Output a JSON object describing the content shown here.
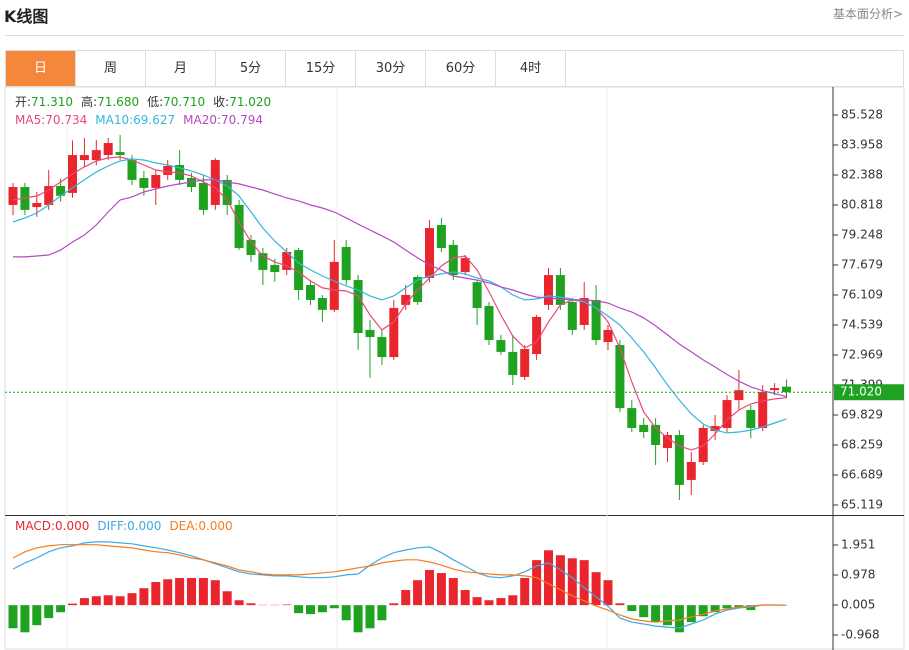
{
  "header": {
    "title": "K线图",
    "link": "基本面分析>"
  },
  "tabs": [
    {
      "label": "日",
      "active": true
    },
    {
      "label": "周",
      "active": false
    },
    {
      "label": "月",
      "active": false
    },
    {
      "label": "5分",
      "active": false
    },
    {
      "label": "15分",
      "active": false
    },
    {
      "label": "30分",
      "active": false
    },
    {
      "label": "60分",
      "active": false
    },
    {
      "label": "4时",
      "active": false
    }
  ],
  "chart_data": [
    {
      "type": "candlestick",
      "info": [
        {
          "name": "开:",
          "value": 71.31,
          "label": "71.310",
          "color": "#1fa21f"
        },
        {
          "name": "高:",
          "value": 71.68,
          "label": "71.680",
          "color": "#1fa21f"
        },
        {
          "name": "低:",
          "value": 70.71,
          "label": "70.710",
          "color": "#1fa21f"
        },
        {
          "name": "收:",
          "value": 71.02,
          "label": "71.020",
          "color": "#1fa21f"
        }
      ],
      "up_color": "#e9262d",
      "down_color": "#1fa21f",
      "open": [
        80.82,
        81.76,
        80.71,
        80.82,
        81.81,
        81.45,
        83.17,
        83.17,
        83.43,
        83.59,
        83.17,
        82.23,
        81.71,
        82.39,
        82.91,
        82.23,
        81.97,
        80.82,
        82.13,
        80.82,
        78.99,
        78.3,
        77.68,
        77.42,
        78.46,
        76.63,
        75.95,
        75.33,
        78.62,
        76.89,
        74.28,
        73.91,
        72.86,
        75.59,
        77.05,
        77.0,
        79.77,
        78.73,
        77.31,
        76.78,
        75.53,
        73.75,
        73.13,
        71.82,
        73.02,
        75.59,
        77.15,
        75.74,
        74.54,
        75.85,
        73.65,
        73.49,
        70.19,
        69.31,
        69.31,
        68.1,
        68.78,
        66.43,
        67.37,
        68.99,
        69.15,
        70.61,
        70.09,
        69.15,
        71.13,
        71.31
      ],
      "high": [
        81.97,
        81.97,
        81.5,
        82.65,
        82.2,
        84.2,
        84.33,
        84.22,
        84.33,
        84.48,
        83.43,
        82.6,
        82.65,
        83.17,
        83.69,
        82.5,
        82.39,
        83.27,
        82.39,
        81.08,
        79.25,
        78.57,
        78.0,
        78.57,
        78.57,
        76.89,
        76.1,
        78.99,
        78.99,
        77.15,
        74.8,
        74.28,
        75.85,
        76.63,
        77.15,
        80.03,
        80.14,
        78.99,
        78.2,
        76.89,
        75.74,
        74.02,
        74.02,
        73.49,
        75.07,
        77.52,
        77.52,
        75.95,
        76.78,
        76.63,
        74.54,
        73.75,
        70.61,
        69.67,
        69.67,
        68.94,
        69.04,
        67.89,
        69.31,
        69.83,
        70.87,
        72.18,
        70.35,
        71.4,
        71.5,
        71.68
      ],
      "low": [
        80.29,
        80.29,
        80.2,
        80.56,
        81.0,
        81.2,
        82.8,
        82.9,
        83.17,
        83.17,
        81.86,
        81.3,
        80.82,
        82.13,
        81.86,
        81.5,
        80.29,
        80.56,
        80.29,
        78.46,
        77.84,
        76.63,
        76.8,
        77.15,
        75.85,
        75.59,
        74.7,
        75.22,
        76.63,
        73.23,
        71.77,
        72.45,
        72.71,
        75.33,
        75.59,
        76.78,
        78.36,
        76.89,
        77.15,
        74.54,
        73.49,
        72.97,
        71.4,
        71.66,
        72.71,
        75.33,
        75.33,
        74.02,
        74.28,
        73.49,
        73.23,
        69.98,
        68.94,
        68.62,
        67.21,
        67.37,
        65.38,
        65.64,
        67.21,
        68.52,
        68.94,
        70.09,
        68.62,
        68.99,
        70.87,
        70.71
      ],
      "close": [
        81.76,
        80.56,
        80.92,
        81.81,
        81.3,
        83.43,
        83.43,
        83.69,
        84.06,
        83.43,
        82.13,
        81.71,
        82.39,
        82.86,
        82.13,
        81.76,
        80.56,
        83.17,
        80.82,
        78.57,
        78.2,
        77.42,
        77.31,
        78.36,
        76.37,
        75.85,
        75.33,
        77.84,
        76.89,
        74.12,
        73.91,
        72.86,
        75.43,
        76.11,
        75.74,
        79.61,
        78.57,
        77.15,
        78.04,
        75.43,
        73.75,
        73.13,
        71.92,
        73.28,
        74.96,
        77.15,
        75.59,
        74.28,
        75.95,
        73.75,
        74.28,
        70.19,
        69.15,
        68.94,
        68.26,
        68.78,
        66.17,
        67.37,
        69.15,
        69.25,
        70.61,
        71.13,
        69.15,
        71.03,
        71.24,
        71.02
      ],
      "series": [
        {
          "name": "MA5:",
          "color": "#e84a7a",
          "values": [
            81.08,
            81.19,
            81.29,
            81.6,
            82.02,
            82.44,
            82.81,
            83.12,
            83.28,
            83.33,
            83.17,
            82.91,
            82.65,
            82.55,
            82.49,
            82.34,
            82.02,
            81.71,
            81.08,
            79.93,
            78.88,
            78.15,
            77.84,
            77.63,
            77.31,
            76.84,
            76.48,
            76.37,
            76.32,
            76.06,
            75.06,
            74.28,
            74.7,
            75.64,
            76.37,
            77.0,
            77.63,
            78.05,
            78.15,
            77.42,
            76.27,
            75.06,
            73.96,
            73.34,
            73.65,
            74.7,
            75.59,
            75.85,
            75.74,
            75.43,
            74.7,
            73.34,
            71.56,
            69.99,
            69.15,
            68.63,
            68.21,
            68.0,
            68.21,
            68.84,
            69.57,
            70.09,
            70.41,
            70.56,
            70.67,
            70.734
          ]
        },
        {
          "name": "MA10:",
          "color": "#33b7dc",
          "values": [
            79.93,
            80.14,
            80.4,
            80.82,
            81.29,
            81.71,
            82.13,
            82.55,
            82.86,
            83.12,
            83.23,
            83.17,
            83.02,
            82.91,
            82.76,
            82.6,
            82.39,
            82.13,
            81.81,
            81.29,
            80.45,
            79.61,
            78.93,
            78.36,
            77.78,
            77.42,
            77.1,
            76.84,
            76.58,
            76.37,
            76.06,
            75.85,
            76.06,
            76.48,
            76.89,
            77.1,
            77.21,
            77.31,
            77.21,
            77.0,
            76.84,
            76.53,
            76.11,
            75.85,
            75.9,
            76.06,
            76.0,
            75.9,
            75.74,
            75.43,
            75.01,
            74.54,
            73.86,
            73.13,
            72.29,
            71.4,
            70.61,
            69.88,
            69.36,
            69.04,
            68.89,
            68.94,
            69.04,
            69.2,
            69.41,
            69.627
          ]
        },
        {
          "name": "MA20:",
          "color": "#b748c6",
          "values": [
            78.1,
            78.1,
            78.15,
            78.2,
            78.46,
            78.88,
            79.25,
            79.77,
            80.45,
            81.08,
            81.24,
            81.5,
            81.66,
            81.81,
            81.92,
            82.02,
            82.13,
            82.13,
            82.02,
            81.92,
            81.76,
            81.6,
            81.39,
            81.19,
            81.03,
            80.82,
            80.66,
            80.45,
            80.14,
            79.82,
            79.51,
            79.2,
            78.88,
            78.46,
            78.05,
            77.68,
            77.42,
            77.1,
            77.0,
            76.89,
            76.74,
            76.53,
            76.37,
            76.16,
            76.0,
            75.95,
            75.9,
            75.85,
            75.85,
            75.8,
            75.69,
            75.43,
            75.22,
            74.91,
            74.49,
            74.02,
            73.54,
            73.13,
            72.71,
            72.34,
            71.95,
            71.6,
            71.3,
            71.1,
            70.95,
            70.794
          ]
        }
      ],
      "current": {
        "value": 71.02,
        "label": "71.020",
        "color": "#1fa21f"
      },
      "ylim": [
        64.596,
        86.94
      ],
      "yticks": [
        85.528,
        83.958,
        82.388,
        80.818,
        79.248,
        77.679,
        76.109,
        74.539,
        72.969,
        71.399,
        69.829,
        68.259,
        66.689,
        65.119
      ]
    },
    {
      "type": "macd",
      "info": [
        {
          "name": "MACD:",
          "value": 0,
          "label": "0.000",
          "color": "#e9262d"
        },
        {
          "name": "DIFF:",
          "value": 0,
          "label": "0.000",
          "color": "#3fa9e6"
        },
        {
          "name": "DEA:",
          "value": 0,
          "label": "0.000",
          "color": "#f57c1f"
        }
      ],
      "up_color": "#e9262d",
      "down_color": "#1fa21f",
      "values": [
        -0.75,
        -0.88,
        -0.65,
        -0.42,
        -0.23,
        0.05,
        0.23,
        0.29,
        0.32,
        0.29,
        0.39,
        0.55,
        0.75,
        0.84,
        0.88,
        0.88,
        0.88,
        0.81,
        0.45,
        0.16,
        0.06,
        0.01,
        0.01,
        0.02,
        -0.26,
        -0.29,
        -0.23,
        -0.1,
        -0.49,
        -0.88,
        -0.75,
        -0.49,
        0.06,
        0.49,
        0.81,
        1.14,
        1.04,
        0.88,
        0.49,
        0.26,
        0.16,
        0.23,
        0.32,
        0.88,
        1.46,
        1.78,
        1.62,
        1.52,
        1.46,
        1.07,
        0.81,
        0.06,
        -0.19,
        -0.39,
        -0.55,
        -0.65,
        -0.88,
        -0.55,
        -0.36,
        -0.23,
        -0.1,
        -0.06,
        -0.16,
        0.01,
        0.01,
        0
      ],
      "series": [
        {
          "name": "DIFF",
          "color": "#3fa9e6",
          "values": [
            1.17,
            1.37,
            1.53,
            1.73,
            1.86,
            1.92,
            2.02,
            2.05,
            2.05,
            2.02,
            1.99,
            1.92,
            1.86,
            1.79,
            1.7,
            1.6,
            1.47,
            1.34,
            1.21,
            1.08,
            1.01,
            0.98,
            0.95,
            0.95,
            0.92,
            0.89,
            0.89,
            0.92,
            0.98,
            1.01,
            1.3,
            1.53,
            1.7,
            1.79,
            1.86,
            1.89,
            1.7,
            1.47,
            1.27,
            1.05,
            0.92,
            0.89,
            0.95,
            1.08,
            1.27,
            1.37,
            1.14,
            0.89,
            0.56,
            0.27,
            -0.03,
            -0.42,
            -0.55,
            -0.61,
            -0.68,
            -0.71,
            -0.74,
            -0.61,
            -0.48,
            -0.29,
            -0.16,
            -0.09,
            -0.06,
            0.005,
            0.005,
            0
          ]
        },
        {
          "name": "DEA",
          "color": "#f57c1f",
          "values": [
            1.53,
            1.73,
            1.86,
            1.92,
            1.96,
            1.96,
            1.96,
            1.96,
            1.92,
            1.89,
            1.86,
            1.79,
            1.73,
            1.7,
            1.63,
            1.53,
            1.47,
            1.37,
            1.27,
            1.14,
            1.08,
            1.01,
            0.98,
            0.98,
            0.98,
            1.01,
            1.05,
            1.08,
            1.14,
            1.21,
            1.27,
            1.37,
            1.43,
            1.47,
            1.47,
            1.4,
            1.3,
            1.17,
            1.08,
            1.05,
            1.01,
            0.98,
            0.98,
            0.95,
            0.89,
            0.69,
            0.5,
            0.3,
            0.14,
            -0.03,
            -0.16,
            -0.32,
            -0.45,
            -0.51,
            -0.55,
            -0.51,
            -0.48,
            -0.38,
            -0.29,
            -0.19,
            -0.12,
            -0.06,
            -0.03,
            0.005,
            0.005,
            0
          ]
        }
      ],
      "ylim": [
        -1.454,
        2.826
      ],
      "yticks": [
        1.951,
        0.978,
        0.005,
        -0.968
      ]
    }
  ]
}
